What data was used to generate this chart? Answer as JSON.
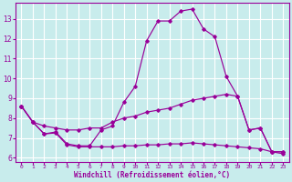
{
  "background_color": "#c8ecec",
  "grid_color": "#ffffff",
  "line_color": "#990099",
  "marker_color": "#990099",
  "xlabel": "Windchill (Refroidissement éolien,°C)",
  "xlabel_color": "#990099",
  "tick_color": "#990099",
  "xlim": [
    -0.5,
    23.5
  ],
  "ylim": [
    5.8,
    13.8
  ],
  "yticks": [
    6,
    7,
    8,
    9,
    10,
    11,
    12,
    13
  ],
  "xticks": [
    0,
    1,
    2,
    3,
    4,
    5,
    6,
    7,
    8,
    9,
    10,
    11,
    12,
    13,
    14,
    15,
    16,
    17,
    18,
    19,
    20,
    21,
    22,
    23
  ],
  "line1_x": [
    0,
    1,
    2,
    3,
    4,
    5,
    6,
    7,
    8,
    9,
    10,
    11,
    12,
    13,
    14,
    15,
    16,
    17,
    18,
    19,
    20,
    21,
    22,
    23
  ],
  "line1_y": [
    8.6,
    7.8,
    7.2,
    7.3,
    6.7,
    6.6,
    6.6,
    7.4,
    7.6,
    8.8,
    9.6,
    11.9,
    12.9,
    12.9,
    13.4,
    13.5,
    12.5,
    12.1,
    10.1,
    9.1,
    7.4,
    7.5,
    6.3,
    6.3
  ],
  "line2_x": [
    0,
    1,
    2,
    3,
    4,
    5,
    6,
    7,
    8,
    9,
    10,
    11,
    12,
    13,
    14,
    15,
    16,
    17,
    18,
    19,
    20,
    21,
    22,
    23
  ],
  "line2_y": [
    8.6,
    7.8,
    7.6,
    7.5,
    7.4,
    7.4,
    7.5,
    7.5,
    7.8,
    8.0,
    8.1,
    8.3,
    8.4,
    8.5,
    8.7,
    8.9,
    9.0,
    9.1,
    9.2,
    9.1,
    7.4,
    7.5,
    6.3,
    6.3
  ],
  "line3_x": [
    0,
    1,
    2,
    3,
    4,
    5,
    6,
    7,
    8,
    9,
    10,
    11,
    12,
    13,
    14,
    15,
    16,
    17,
    18,
    19,
    20,
    21,
    22,
    23
  ],
  "line3_y": [
    8.6,
    7.8,
    7.2,
    7.25,
    6.65,
    6.55,
    6.55,
    6.55,
    6.55,
    6.6,
    6.6,
    6.65,
    6.65,
    6.7,
    6.7,
    6.75,
    6.7,
    6.65,
    6.6,
    6.55,
    6.5,
    6.45,
    6.3,
    6.2
  ]
}
